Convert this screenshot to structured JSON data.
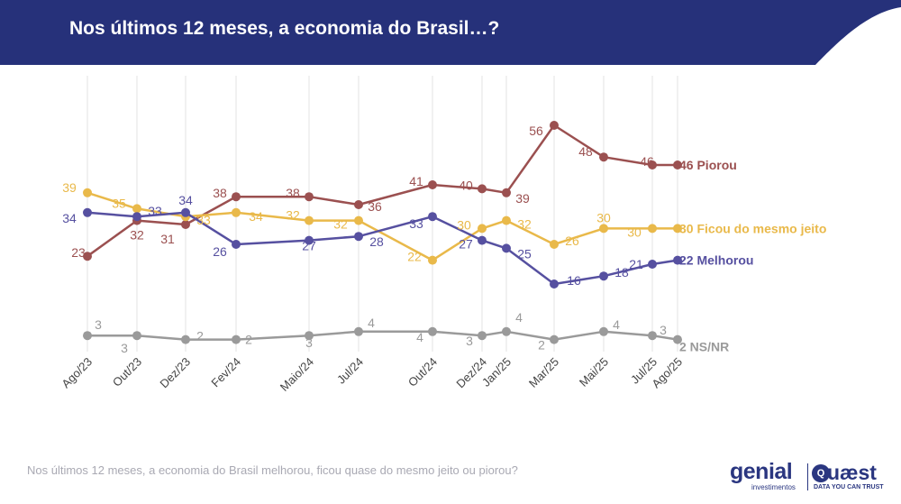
{
  "header": {
    "title": "Nos últimos 12 meses, a economia do Brasil…?"
  },
  "footnote": "Nos últimos 12 meses, a economia do Brasil melhorou, ficou quase do mesmo jeito ou piorou?",
  "logos": {
    "genial": "genial",
    "genial_sub": "investimentos",
    "quaest_mark": "Q",
    "quaest": "uæst",
    "quaest_sub": "DATA YOU CAN TRUST"
  },
  "colors": {
    "header": "#26317a",
    "piorou": "#9b5050",
    "ficou": "#e9b94a",
    "melhorou": "#5650a0",
    "nsnr": "#9a9a9a",
    "grid": "#e3e3e3"
  },
  "chart_data": {
    "type": "line",
    "title": "",
    "xlabel": "",
    "ylabel": "",
    "grid": true,
    "legend": "end-of-line labels",
    "x": [
      "Ago/23",
      "Out/23",
      "Dez/23",
      "Fev/24",
      "Maio/24",
      "Jul/24",
      "Out/24",
      "Dez/24",
      "Jan/25",
      "Mar/25",
      "Mai/25",
      "Jul/25",
      "Ago/25"
    ],
    "series": [
      {
        "key": "piorou",
        "name": "Piorou",
        "end_label": "46 Piorou",
        "values": [
          23,
          32,
          31,
          38,
          38,
          36,
          41,
          40,
          39,
          56,
          48,
          46,
          46
        ]
      },
      {
        "key": "ficou",
        "name": "Ficou do mesmo jeito",
        "end_label": "30 Ficou do mesmo jeito",
        "values": [
          39,
          35,
          33,
          34,
          32,
          32,
          22,
          30,
          32,
          26,
          30,
          30,
          30
        ]
      },
      {
        "key": "melhorou",
        "name": "Melhorou",
        "end_label": "22 Melhorou",
        "values": [
          34,
          33,
          34,
          26,
          27,
          28,
          33,
          27,
          25,
          16,
          18,
          21,
          22
        ]
      },
      {
        "key": "nsnr",
        "name": "NS/NR",
        "end_label": "2 NS/NR",
        "values": [
          3,
          3,
          2,
          2,
          3,
          4,
          4,
          3,
          4,
          2,
          4,
          3,
          2
        ]
      }
    ]
  }
}
